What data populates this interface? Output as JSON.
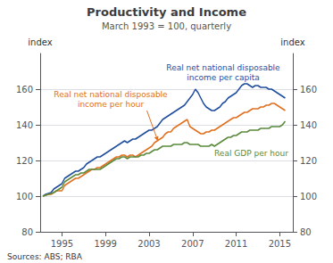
{
  "chart_data": {
    "type": "line",
    "title": "Productivity and Income",
    "subtitle": "March 1993 = 100, quarterly",
    "ylabel": "index",
    "y2label": "index",
    "source": "Sources: ABS; RBA",
    "xlim": [
      1993.0,
      2016.2
    ],
    "xticks": [
      1995,
      1999,
      2003,
      2007,
      2011,
      2015
    ],
    "ylim": [
      80,
      180
    ],
    "yticks": [
      80,
      100,
      120,
      140,
      160
    ],
    "y2lim": [
      80,
      180
    ],
    "y2ticks": [
      80,
      100,
      120,
      140,
      160
    ],
    "grid": "y",
    "x": [
      1993.25,
      1993.5,
      1993.75,
      1994.0,
      1994.25,
      1994.5,
      1994.75,
      1995.0,
      1995.25,
      1995.5,
      1995.75,
      1996.0,
      1996.25,
      1996.5,
      1996.75,
      1997.0,
      1997.25,
      1997.5,
      1997.75,
      1998.0,
      1998.25,
      1998.5,
      1998.75,
      1999.0,
      1999.25,
      1999.5,
      1999.75,
      2000.0,
      2000.25,
      2000.5,
      2000.75,
      2001.0,
      2001.25,
      2001.5,
      2001.75,
      2002.0,
      2002.25,
      2002.5,
      2002.75,
      2003.0,
      2003.25,
      2003.5,
      2003.75,
      2004.0,
      2004.25,
      2004.5,
      2004.75,
      2005.0,
      2005.25,
      2005.5,
      2005.75,
      2006.0,
      2006.25,
      2006.5,
      2006.75,
      2007.0,
      2007.25,
      2007.5,
      2007.75,
      2008.0,
      2008.25,
      2008.5,
      2008.75,
      2009.0,
      2009.25,
      2009.5,
      2009.75,
      2010.0,
      2010.25,
      2010.5,
      2010.75,
      2011.0,
      2011.25,
      2011.5,
      2011.75,
      2012.0,
      2012.25,
      2012.5,
      2012.75,
      2013.0,
      2013.25,
      2013.5,
      2013.75,
      2014.0,
      2014.25,
      2014.5,
      2014.75,
      2015.0,
      2015.25,
      2015.5
    ],
    "series": [
      {
        "color": "#1f4e9e",
        "values": [
          100,
          101,
          101.5,
          102,
          104,
          105,
          106,
          107,
          110,
          111,
          112,
          113,
          114,
          114,
          115,
          116,
          118,
          119,
          120,
          121,
          122,
          122,
          123,
          124,
          125,
          126,
          127,
          128,
          129,
          130,
          131,
          130,
          131,
          132,
          132,
          133,
          134,
          135,
          136,
          137,
          137,
          138,
          139,
          141,
          143,
          144,
          145,
          146,
          147,
          148,
          149,
          150,
          151,
          153,
          155,
          157,
          160,
          158,
          155,
          152,
          150,
          149,
          148,
          148,
          149,
          150,
          152,
          153,
          155,
          156,
          157,
          158,
          160,
          162,
          163,
          163,
          162,
          161,
          162,
          162,
          161,
          161,
          161,
          160,
          160,
          159,
          158,
          157,
          156,
          155
        ]
      },
      {
        "color": "#e07020",
        "values": [
          100,
          100.5,
          101,
          101,
          102,
          103,
          103,
          103,
          106,
          107,
          108,
          109,
          110,
          110,
          111,
          112,
          113,
          114,
          115,
          115,
          116,
          116,
          117,
          118,
          119,
          120,
          121,
          122,
          122,
          123,
          123,
          122,
          123,
          123,
          122,
          123,
          124,
          125,
          126,
          127,
          128,
          130,
          131,
          132,
          133,
          135,
          136,
          136,
          138,
          139,
          140,
          141,
          142,
          143,
          139,
          138,
          137,
          136,
          135,
          135,
          136,
          136,
          137,
          137,
          138,
          139,
          140,
          141,
          142,
          143,
          144,
          144,
          145,
          146,
          147,
          147,
          148,
          149,
          149,
          149,
          150,
          150,
          151,
          151,
          152,
          152,
          151,
          150,
          149,
          148
        ]
      },
      {
        "color": "#5a8a3c",
        "values": [
          100,
          100.5,
          101,
          101.5,
          102,
          103,
          104,
          105,
          108,
          109,
          110,
          111,
          112,
          112,
          113,
          113,
          114,
          115,
          115,
          115,
          115,
          115,
          116,
          117,
          118,
          119,
          120,
          121,
          121,
          122,
          122,
          121,
          122,
          122,
          122,
          122,
          123,
          123,
          124,
          124,
          125,
          126,
          126,
          127,
          128,
          128,
          128,
          128,
          129,
          129,
          129,
          129,
          130,
          130,
          129,
          129,
          129,
          129,
          128,
          128,
          128,
          128,
          129,
          128,
          129,
          130,
          131,
          132,
          133,
          133,
          134,
          134,
          135,
          136,
          136,
          136,
          137,
          137,
          137,
          137,
          138,
          138,
          138,
          138,
          139,
          139,
          139,
          139,
          140,
          142
        ]
      }
    ],
    "annotations": [
      {
        "text": "Real net national disposable\nincome per capita",
        "color": "#1f4e9e"
      },
      {
        "text": "Real net national disposable\nincome per hour",
        "color": "#e07020"
      },
      {
        "text": "Real GDP per hour",
        "color": "#5a8a3c"
      }
    ]
  }
}
